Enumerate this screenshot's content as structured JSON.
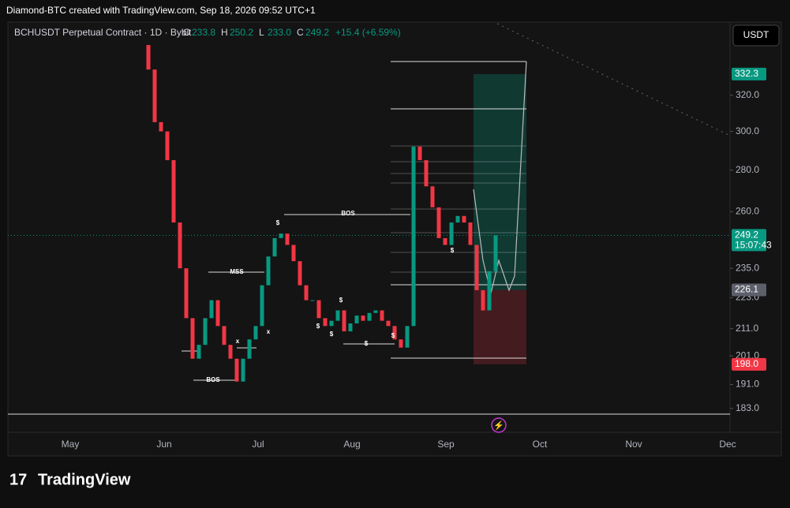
{
  "header": {
    "attribution": "Diamond-BTC created with TradingView.com, Sep 18, 2026 09:52 UTC+1",
    "symbol": "BCHUSDT Perpetual Contract · 1D · Bybit",
    "ohlc": [
      {
        "key": "O",
        "value": "233.8"
      },
      {
        "key": "H",
        "value": "250.2"
      },
      {
        "key": "L",
        "value": "233.0"
      },
      {
        "key": "C",
        "value": "249.2"
      }
    ],
    "change": "+15.4 (+6.59%)"
  },
  "currency_button": "USDT",
  "logo": "TradingView",
  "chart_data": {
    "type": "candlestick",
    "log_scale": true,
    "up_color": "#089981",
    "down_color": "#f23645",
    "closes": [
      350,
      335,
      305,
      300,
      285,
      255,
      235,
      215,
      200,
      205,
      215,
      222,
      212,
      205,
      200,
      192,
      200,
      207,
      212,
      228,
      240,
      248,
      250,
      245,
      238,
      228,
      222,
      222,
      215,
      212,
      214,
      218,
      210,
      213,
      216,
      214,
      217,
      218,
      214,
      212,
      207,
      204,
      212,
      292,
      285,
      272,
      262,
      248,
      245,
      255,
      258,
      255,
      245,
      226,
      218,
      233.8,
      249.2
    ],
    "ylim": [
      175.4,
      364.6
    ],
    "yticks": [
      {
        "value": 183,
        "label": "183.0"
      },
      {
        "value": 191,
        "label": "191.0"
      },
      {
        "value": 201,
        "label": "201.0"
      },
      {
        "value": 211,
        "label": "211.0"
      },
      {
        "value": 223,
        "label": "223.0"
      },
      {
        "value": 235,
        "label": "235.0"
      },
      {
        "value": 260,
        "label": "260.0"
      },
      {
        "value": 280,
        "label": "280.0"
      },
      {
        "value": 300,
        "label": "300.0"
      },
      {
        "value": 320,
        "label": "320.0"
      }
    ],
    "x_labels": [
      "May",
      "Jun",
      "Jul",
      "Aug",
      "Sep",
      "Oct",
      "Nov",
      "Dec"
    ],
    "price_labels": [
      {
        "value": 332.3,
        "label": "332.3",
        "color": "#089981"
      },
      {
        "value": 249.2,
        "label": "249.2",
        "color": "#089981",
        "sub": "15:07:43"
      },
      {
        "value": 226.1,
        "label": "226.1",
        "color": "#5d606b"
      },
      {
        "value": 198,
        "label": "198.0",
        "color": "#f23645"
      }
    ],
    "annotations": [
      "BOS",
      "MSS",
      "BOS",
      "x",
      "x",
      "$",
      "$",
      "$",
      "$",
      "$",
      "$",
      "$"
    ]
  }
}
